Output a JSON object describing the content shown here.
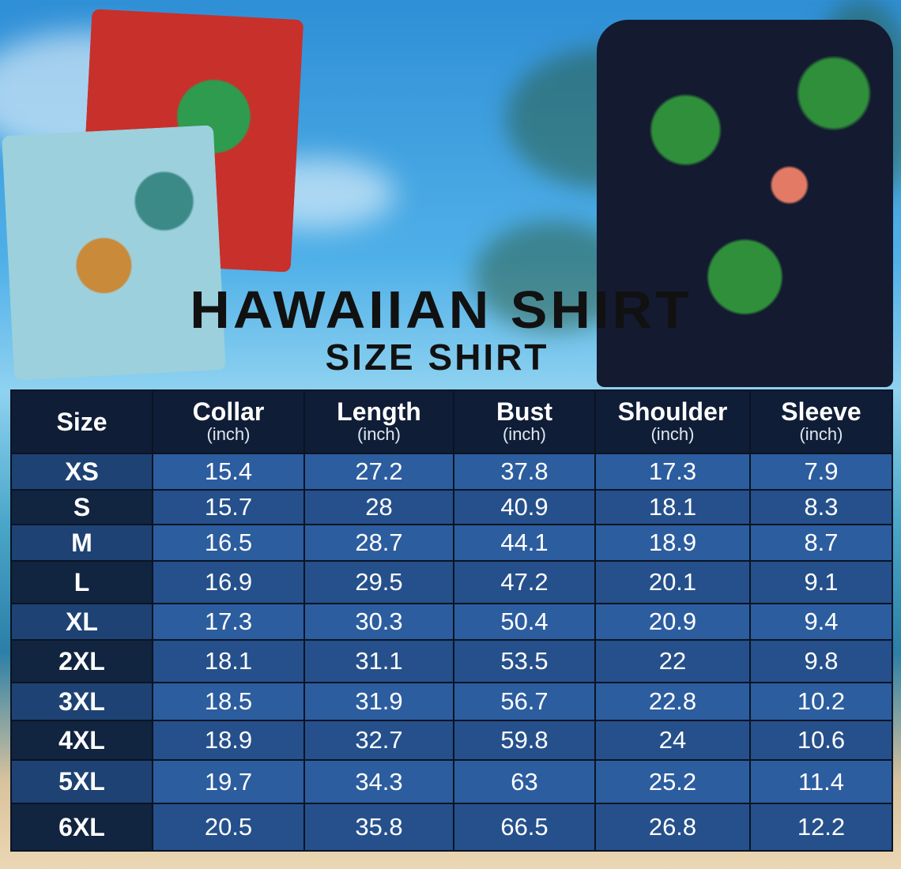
{
  "title": "HAWAIIAN SHIRT",
  "subtitle": "SIZE SHIRT",
  "colors": {
    "header": "#0f1d36",
    "row_light": "#2c5d9f",
    "row_dark": "#25508b",
    "size_col": "#112440",
    "title": "#111111"
  },
  "table": {
    "columns": [
      {
        "label": "Size",
        "unit": ""
      },
      {
        "label": "Collar",
        "unit": "(inch)"
      },
      {
        "label": "Length",
        "unit": "(inch)"
      },
      {
        "label": "Bust",
        "unit": "(inch)"
      },
      {
        "label": "Shoulder",
        "unit": "(inch)"
      },
      {
        "label": "Sleeve",
        "unit": "(inch)"
      }
    ],
    "rows": [
      [
        "XS",
        "15.4",
        "27.2",
        "37.8",
        "17.3",
        "7.9"
      ],
      [
        "S",
        "15.7",
        "28",
        "40.9",
        "18.1",
        "8.3"
      ],
      [
        "M",
        "16.5",
        "28.7",
        "44.1",
        "18.9",
        "8.7"
      ],
      [
        "L",
        "16.9",
        "29.5",
        "47.2",
        "20.1",
        "9.1"
      ],
      [
        "XL",
        "17.3",
        "30.3",
        "50.4",
        "20.9",
        "9.4"
      ],
      [
        "2XL",
        "18.1",
        "31.1",
        "53.5",
        "22",
        "9.8"
      ],
      [
        "3XL",
        "18.5",
        "31.9",
        "56.7",
        "22.8",
        "10.2"
      ],
      [
        "4XL",
        "18.9",
        "32.7",
        "59.8",
        "24",
        "10.6"
      ],
      [
        "5XL",
        "19.7",
        "34.3",
        "63",
        "25.2",
        "11.4"
      ],
      [
        "6XL",
        "20.5",
        "35.8",
        "66.5",
        "26.8",
        "12.2"
      ]
    ]
  }
}
